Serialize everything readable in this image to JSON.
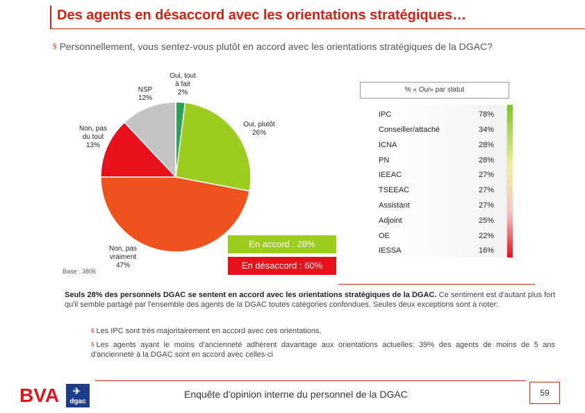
{
  "header": {
    "title": "Des agents en désaccord avec les orientations stratégiques…"
  },
  "question": {
    "bullet": "§",
    "text": "Personnellement, vous sentez-vous plutôt en accord avec les orientations stratégiques de la DGAC?"
  },
  "chart_data": {
    "type": "pie",
    "title": "",
    "slices": [
      {
        "label": "Oui, tout à fait",
        "value": 2,
        "color": "#2aa05a"
      },
      {
        "label": "Oui, plutôt",
        "value": 26,
        "color": "#9acd1e"
      },
      {
        "label": "Non, pas vraiment",
        "value": 47,
        "color": "#f0521e"
      },
      {
        "label": "Non, pas du tout",
        "value": 13,
        "color": "#e8101a"
      },
      {
        "label": "NSP",
        "value": 12,
        "color": "#c4c4c4"
      }
    ],
    "labels": {
      "tout_a_fait": [
        "Oui, tout",
        "à fait",
        "2%"
      ],
      "plutot": [
        "Oui, plutôt",
        "26%"
      ],
      "pas_vraiment": [
        "Non, pas",
        "vraiment",
        "47%"
      ],
      "pas_du_tout": [
        "Non, pas",
        "du tout",
        "13%"
      ],
      "nsp": [
        "NSP",
        "12%"
      ]
    }
  },
  "base_label": "Base : 3806",
  "accord_box": "En accord : 28%",
  "desaccord_box": "En désaccord : 60%",
  "statut": {
    "header_prefix": "% «",
    "header_oui": "Oui",
    "header_suffix": "» par statut",
    "rows": [
      {
        "name": "IPC",
        "value": "78%"
      },
      {
        "name": "Conseiller/attaché",
        "value": "34%"
      },
      {
        "name": "ICNA",
        "value": "28%"
      },
      {
        "name": "PN",
        "value": "28%"
      },
      {
        "name": "IEEAC",
        "value": "27%"
      },
      {
        "name": "TSEEAC",
        "value": "27%"
      },
      {
        "name": "Assistant",
        "value": "27%"
      },
      {
        "name": "Adjoint",
        "value": "25%"
      },
      {
        "name": "OE",
        "value": "22%"
      },
      {
        "name": "IESSA",
        "value": "16%"
      }
    ]
  },
  "summary": {
    "bold": "Seuls 28% des personnels DGAC se sentent en accord avec les orientations stratégiques de la DGAC.",
    "rest": " Ce sentiment est d'autant plus fort qu'il semble partagé par l'ensemble des agents de la DGAC toutes catégories confondues. Seules deux exceptions sont à noter:",
    "bullet1": "Les IPC sont très majoritairement en accord avec ces orientations,",
    "bullet2": "Les agents ayant le moins d'ancienneté adhèrent davantage aux orientations actuelles: 39% des agents de moins de 5 ans d'ancienneté à la DGAC sont en accord avec celles-ci",
    "bullet_mark": "§"
  },
  "footer": {
    "text": "Enquête d'opinion interne du personnel de la DGAC",
    "page": "59",
    "logo_bva": "BVA",
    "logo_dgac": "dgac"
  },
  "colors": {
    "accent": "#d4200f",
    "accord": "#9acd1e",
    "desaccord": "#e8101a",
    "dgac_blue": "#1e3c8c"
  }
}
